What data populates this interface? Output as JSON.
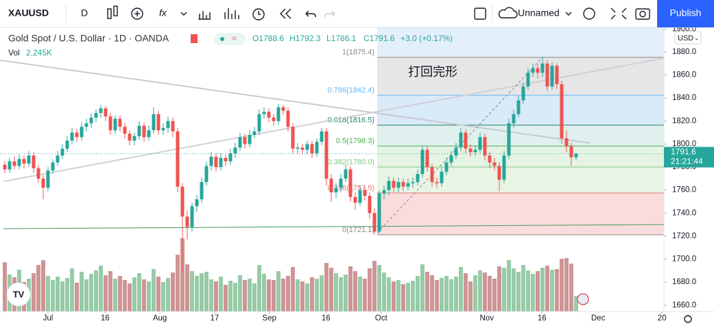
{
  "toolbar": {
    "symbol": "XAUUSD",
    "interval": "D",
    "layout_name": "Unnamed",
    "publish": "Publish"
  },
  "legend": {
    "title": "Gold Spot / U.S. Dollar · 1D · OANDA",
    "open": "O1788.6",
    "high": "H1792.3",
    "low": "L1786.1",
    "close": "C1791.6",
    "change": "+3.0 (+0.17%)",
    "vol_name": "Vol",
    "vol_value": "2.245K"
  },
  "annotation": "打回完形",
  "currency": "USD",
  "price_label": {
    "value": 1791.6,
    "time": "21:21:44"
  },
  "chart_data": {
    "type": "candlestick",
    "up_color": "#26a69a",
    "down_color": "#ef5350",
    "volume_up_color": "#96cba6",
    "volume_down_color": "#cf9494",
    "ylim": [
      1654.5,
      1901.4
    ],
    "yticks": [
      {
        "value": 1660,
        "label": "1660.0"
      },
      {
        "value": 1680,
        "label": "1680.0"
      },
      {
        "value": 1700,
        "label": "1700.0"
      },
      {
        "value": 1720,
        "label": "1720.0"
      },
      {
        "value": 1740,
        "label": "1740.0"
      },
      {
        "value": 1760,
        "label": "1760.0"
      },
      {
        "value": 1780,
        "label": "1780.0"
      },
      {
        "value": 1800,
        "label": "1800.0"
      },
      {
        "value": 1820,
        "label": "1820.0"
      },
      {
        "value": 1840,
        "label": "1840.0"
      },
      {
        "value": 1860,
        "label": "1860.0"
      },
      {
        "value": 1880,
        "label": "1880.0"
      },
      {
        "value": 1900,
        "label": "1900.0"
      }
    ],
    "xlim": [
      -1,
      137.3
    ],
    "xticks": [
      {
        "value": 9,
        "label": "Jul"
      },
      {
        "value": 20.9,
        "label": "16"
      },
      {
        "value": 32.3,
        "label": "Aug"
      },
      {
        "value": 43.7,
        "label": "17"
      },
      {
        "value": 55.1,
        "label": "Sep"
      },
      {
        "value": 66.9,
        "label": "16"
      },
      {
        "value": 78.4,
        "label": "Oct"
      },
      {
        "value": 100.4,
        "label": "Nov"
      },
      {
        "value": 111.9,
        "label": "16"
      },
      {
        "value": 123.6,
        "label": "Dec"
      },
      {
        "value": 136.9,
        "label": "20"
      }
    ],
    "grid": false,
    "fib_levels": [
      {
        "value": 1875.4,
        "label": "1(1875.4)"
      },
      {
        "value": 1842.4,
        "label": "0.786(1842.4)"
      },
      {
        "value": 1816.5,
        "label": "0.618(1816.5)"
      },
      {
        "value": 1798.3,
        "label": "0.5(1798.3)"
      },
      {
        "value": 1780.0,
        "label": "0.382(1780.0)"
      },
      {
        "value": 1757.5,
        "label": "0.236(1757.5)"
      },
      {
        "value": 1721.1,
        "label": "0(1721.1)"
      }
    ],
    "fib_colors": [
      "#888888",
      "#64b5f6",
      "#26806a",
      "#4caf50",
      "#81c784",
      "#e57373",
      "#888888"
    ],
    "fib_fills": [
      "#e6e6e6",
      "#d9eaf8",
      "#dff0ee",
      "#e4f3e3",
      "#e9f5e4",
      "#fbdcdc"
    ],
    "open": [
      1782,
      1778,
      1785,
      1781,
      1787,
      1783,
      1790,
      1779,
      1770,
      1762,
      1777,
      1784,
      1790,
      1796,
      1803,
      1810,
      1806,
      1815,
      1818,
      1823,
      1827,
      1831,
      1824,
      1812,
      1822,
      1815,
      1809,
      1803,
      1807,
      1816,
      1806,
      1812,
      1826,
      1812,
      1814,
      1820,
      1811,
      1763,
      1737,
      1728,
      1746,
      1752,
      1767,
      1781,
      1789,
      1780,
      1788,
      1785,
      1792,
      1797,
      1806,
      1800,
      1808,
      1811,
      1826,
      1828,
      1823,
      1820,
      1832,
      1829,
      1815,
      1796,
      1797,
      1795,
      1800,
      1792,
      1802,
      1811,
      1770,
      1758,
      1762,
      1770,
      1778,
      1754,
      1749,
      1760,
      1755,
      1740,
      1724,
      1757,
      1760,
      1768,
      1762,
      1767,
      1763,
      1766,
      1767,
      1774,
      1795,
      1780,
      1767,
      1766,
      1776,
      1784,
      1790,
      1797,
      1810,
      1796,
      1793,
      1795,
      1806,
      1790,
      1784,
      1781,
      1769,
      1790,
      1818,
      1826,
      1838,
      1850,
      1862,
      1866,
      1862,
      1870,
      1850,
      1868,
      1852,
      1805,
      1798,
      1788.6
    ],
    "high": [
      1785,
      1788,
      1789,
      1791,
      1790,
      1794,
      1793,
      1782,
      1773,
      1780,
      1787,
      1794,
      1800,
      1807,
      1814,
      1813,
      1819,
      1822,
      1827,
      1830,
      1834,
      1833,
      1827,
      1825,
      1825,
      1818,
      1812,
      1810,
      1820,
      1819,
      1816,
      1832,
      1829,
      1818,
      1824,
      1823,
      1814,
      1766,
      1742,
      1749,
      1756,
      1771,
      1785,
      1793,
      1792,
      1792,
      1791,
      1796,
      1801,
      1810,
      1809,
      1812,
      1815,
      1830,
      1832,
      1831,
      1826,
      1835,
      1834,
      1832,
      1818,
      1801,
      1800,
      1803,
      1803,
      1805,
      1814,
      1814,
      1774,
      1766,
      1774,
      1782,
      1781,
      1758,
      1764,
      1763,
      1758,
      1744,
      1760,
      1764,
      1772,
      1771,
      1771,
      1770,
      1770,
      1771,
      1778,
      1799,
      1798,
      1783,
      1771,
      1780,
      1788,
      1794,
      1801,
      1814,
      1813,
      1800,
      1799,
      1810,
      1809,
      1793,
      1788,
      1784,
      1794,
      1822,
      1830,
      1842,
      1854,
      1866,
      1870,
      1870,
      1876,
      1873,
      1871,
      1870,
      1855,
      1812,
      1801,
      1792.3
    ],
    "low": [
      1775,
      1775,
      1778,
      1778,
      1779,
      1780,
      1775,
      1766,
      1752,
      1759,
      1774,
      1781,
      1787,
      1793,
      1800,
      1802,
      1803,
      1811,
      1814,
      1819,
      1823,
      1820,
      1808,
      1809,
      1811,
      1805,
      1799,
      1799,
      1804,
      1802,
      1803,
      1809,
      1808,
      1808,
      1810,
      1806,
      1758,
      1690,
      1717,
      1724,
      1741,
      1749,
      1764,
      1777,
      1776,
      1777,
      1781,
      1782,
      1788,
      1794,
      1796,
      1797,
      1805,
      1808,
      1822,
      1819,
      1816,
      1817,
      1825,
      1811,
      1792,
      1792,
      1791,
      1791,
      1788,
      1789,
      1799,
      1764,
      1750,
      1753,
      1758,
      1767,
      1750,
      1743,
      1746,
      1751,
      1735,
      1721,
      1722,
      1752,
      1756,
      1758,
      1758,
      1759,
      1760,
      1762,
      1764,
      1771,
      1776,
      1763,
      1762,
      1763,
      1773,
      1781,
      1787,
      1794,
      1792,
      1789,
      1790,
      1792,
      1786,
      1779,
      1777,
      1759,
      1766,
      1787,
      1814,
      1823,
      1835,
      1847,
      1858,
      1857,
      1858,
      1846,
      1847,
      1848,
      1800,
      1793,
      1781,
      1786.1
    ],
    "close": [
      1778,
      1785,
      1781,
      1787,
      1783,
      1790,
      1779,
      1770,
      1762,
      1777,
      1784,
      1790,
      1796,
      1803,
      1810,
      1806,
      1815,
      1818,
      1823,
      1827,
      1831,
      1824,
      1812,
      1822,
      1815,
      1809,
      1803,
      1807,
      1816,
      1806,
      1812,
      1826,
      1812,
      1814,
      1820,
      1811,
      1763,
      1737,
      1728,
      1746,
      1752,
      1767,
      1781,
      1789,
      1780,
      1788,
      1785,
      1792,
      1797,
      1806,
      1800,
      1808,
      1811,
      1826,
      1828,
      1823,
      1820,
      1832,
      1829,
      1815,
      1796,
      1797,
      1795,
      1800,
      1792,
      1802,
      1811,
      1770,
      1758,
      1762,
      1770,
      1778,
      1754,
      1749,
      1760,
      1755,
      1740,
      1724,
      1757,
      1760,
      1768,
      1762,
      1767,
      1763,
      1766,
      1767,
      1774,
      1795,
      1780,
      1767,
      1766,
      1776,
      1784,
      1790,
      1797,
      1810,
      1796,
      1793,
      1795,
      1806,
      1790,
      1784,
      1781,
      1769,
      1790,
      1818,
      1826,
      1838,
      1850,
      1862,
      1866,
      1862,
      1870,
      1850,
      1868,
      1852,
      1805,
      1798,
      1788.6,
      1791.6
    ],
    "volume": [
      7200,
      5400,
      5000,
      6100,
      4300,
      4800,
      5600,
      6800,
      7500,
      5200,
      4600,
      5100,
      4400,
      4900,
      6300,
      4200,
      5800,
      4700,
      5500,
      6000,
      6700,
      5300,
      5900,
      4800,
      5200,
      4600,
      4100,
      5000,
      5600,
      4700,
      4400,
      6200,
      5100,
      4300,
      4900,
      5700,
      8300,
      10700,
      6900,
      5900,
      5200,
      5600,
      5800,
      4700,
      4400,
      5100,
      3900,
      4500,
      4200,
      5300,
      4600,
      4800,
      4100,
      6800,
      5500,
      4700,
      4600,
      5900,
      4800,
      5200,
      6500,
      4700,
      4400,
      4100,
      5000,
      4800,
      5300,
      7100,
      6400,
      5600,
      5000,
      5400,
      6600,
      5900,
      5100,
      4800,
      6300,
      7400,
      6800,
      5700,
      5000,
      4400,
      4600,
      4000,
      4200,
      4500,
      5200,
      6900,
      5800,
      5300,
      4600,
      4900,
      5200,
      4700,
      5100,
      6500,
      5600,
      4400,
      5300,
      6000,
      5700,
      5200,
      4800,
      6600,
      6400,
      7500,
      6300,
      5800,
      6800,
      6000,
      5500,
      5900,
      6400,
      6700,
      6100,
      6200,
      7700,
      7800,
      7000,
      2245
    ]
  }
}
